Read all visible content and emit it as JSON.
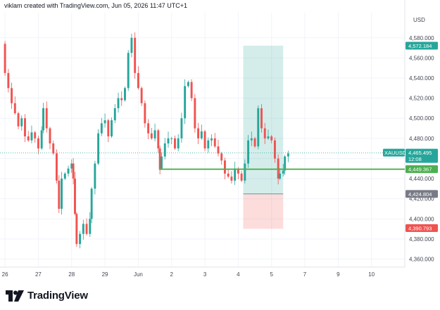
{
  "header": {
    "text": "viklam created with TradingView.com, Jun 05, 2026 11:47 UTC+1"
  },
  "logo": {
    "text": "TradingView"
  },
  "colors": {
    "up": "#26a69a",
    "down": "#ef5350",
    "line": "#4caf50",
    "grid": "#f0f3fa"
  },
  "chart_data": {
    "type": "candlestick",
    "symbol": "XAUUSD",
    "currency": "USD",
    "y_ticks": [
      4360,
      4380,
      4400,
      4420,
      4440,
      4460,
      4480,
      4500,
      4520,
      4540,
      4560,
      4580
    ],
    "y_tick_labels": [
      "4,360.000",
      "4,380.000",
      "4,400.000",
      "4,420.000",
      "4,440.000",
      "4,460.000",
      "4,480.000",
      "4,500.000",
      "4,520.000",
      "4,540.000",
      "4,560.000",
      "4,580.000"
    ],
    "ylim": [
      4352,
      4605
    ],
    "x_ticks": [
      26,
      27,
      28,
      29,
      30,
      31,
      32,
      33,
      34,
      35,
      36,
      37
    ],
    "x_tick_labels": [
      "26",
      "27",
      "28",
      "29",
      "Jun",
      "2",
      "3",
      "4",
      "5",
      "7",
      "9",
      "10"
    ],
    "xlim": [
      25.85,
      38.0
    ],
    "last_price": {
      "value": 4465.495,
      "label": "XAUUSD",
      "price_label": "4,465.495",
      "countdown": "12:08"
    },
    "entry_line": {
      "value": 4449.367,
      "label": "4,449.367",
      "from_x": 30.62
    },
    "target": {
      "value": 4572.184,
      "label": "4,572.184"
    },
    "stop": {
      "value": 4390.793,
      "label": "4,390.793"
    },
    "entry_box_level": {
      "value": 4424.804,
      "label": "4,424.804"
    },
    "position": {
      "x_start": 33.15,
      "x_end": 34.35,
      "entry": 4424.804,
      "target": 4572.184,
      "stop": 4390.793
    },
    "series": [
      {
        "name": "XAUUSD",
        "points": [
          [
            25.9,
            4574
          ],
          [
            26.0,
            4545
          ],
          [
            26.1,
            4530
          ],
          [
            26.2,
            4515
          ],
          [
            26.3,
            4505
          ],
          [
            26.4,
            4492
          ],
          [
            26.5,
            4500
          ],
          [
            26.6,
            4482
          ],
          [
            26.7,
            4478
          ],
          [
            26.8,
            4486
          ],
          [
            26.9,
            4480
          ],
          [
            27.0,
            4470
          ],
          [
            27.1,
            4488
          ],
          [
            27.15,
            4510
          ],
          [
            27.25,
            4490
          ],
          [
            27.35,
            4475
          ],
          [
            27.45,
            4465
          ],
          [
            27.55,
            4438
          ],
          [
            27.62,
            4410
          ],
          [
            27.7,
            4440
          ],
          [
            27.8,
            4445
          ],
          [
            27.9,
            4450
          ],
          [
            28.0,
            4455
          ],
          [
            28.05,
            4440
          ],
          [
            28.1,
            4405
          ],
          [
            28.15,
            4375
          ],
          [
            28.25,
            4385
          ],
          [
            28.35,
            4395
          ],
          [
            28.45,
            4385
          ],
          [
            28.55,
            4400
          ],
          [
            28.6,
            4430
          ],
          [
            28.7,
            4455
          ],
          [
            28.8,
            4485
          ],
          [
            28.9,
            4495
          ],
          [
            29.0,
            4498
          ],
          [
            29.1,
            4482
          ],
          [
            29.2,
            4498
          ],
          [
            29.3,
            4510
          ],
          [
            29.4,
            4520
          ],
          [
            29.5,
            4518
          ],
          [
            29.6,
            4530
          ],
          [
            29.7,
            4565
          ],
          [
            29.8,
            4580
          ],
          [
            29.9,
            4545
          ],
          [
            30.0,
            4530
          ],
          [
            30.1,
            4515
          ],
          [
            30.2,
            4495
          ],
          [
            30.3,
            4485
          ],
          [
            30.4,
            4480
          ],
          [
            30.5,
            4488
          ],
          [
            30.6,
            4470
          ],
          [
            30.65,
            4450
          ],
          [
            30.7,
            4462
          ],
          [
            30.8,
            4475
          ],
          [
            30.9,
            4480
          ],
          [
            31.0,
            4480
          ],
          [
            31.1,
            4470
          ],
          [
            31.2,
            4480
          ],
          [
            31.3,
            4500
          ],
          [
            31.4,
            4532
          ],
          [
            31.5,
            4536
          ],
          [
            31.6,
            4520
          ],
          [
            31.7,
            4490
          ],
          [
            31.8,
            4480
          ],
          [
            31.9,
            4487
          ],
          [
            32.0,
            4470
          ],
          [
            32.1,
            4478
          ],
          [
            32.2,
            4480
          ],
          [
            32.3,
            4472
          ],
          [
            32.4,
            4465
          ],
          [
            32.5,
            4458
          ],
          [
            32.6,
            4445
          ],
          [
            32.7,
            4442
          ],
          [
            32.8,
            4438
          ],
          [
            32.9,
            4450
          ],
          [
            33.0,
            4445
          ],
          [
            33.1,
            4438
          ],
          [
            33.2,
            4455
          ],
          [
            33.3,
            4478
          ],
          [
            33.4,
            4480
          ],
          [
            33.5,
            4472
          ],
          [
            33.6,
            4510
          ],
          [
            33.7,
            4490
          ],
          [
            33.8,
            4480
          ],
          [
            33.9,
            4482
          ],
          [
            34.0,
            4478
          ],
          [
            34.1,
            4460
          ],
          [
            34.2,
            4440
          ],
          [
            34.25,
            4445
          ],
          [
            34.35,
            4448
          ],
          [
            34.4,
            4462
          ],
          [
            34.5,
            4465
          ]
        ]
      }
    ]
  }
}
